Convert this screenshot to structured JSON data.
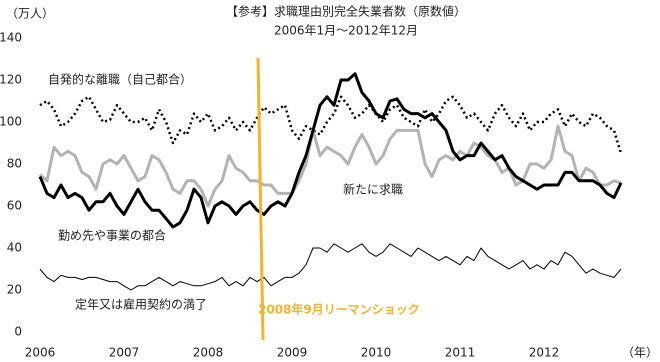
{
  "chart_data": {
    "type": "line",
    "title": "【参考】求職理由別完全失業者数（原数値）",
    "subtitle": "2006年1月～2012年12月",
    "y_label": "（万人）",
    "x_label": "（年）",
    "annotation": "2008年9月リーマンショック",
    "annotation_color": "#f5b326",
    "categories": [
      "2006",
      null,
      null,
      null,
      null,
      null,
      null,
      null,
      null,
      null,
      null,
      null,
      "2007",
      null,
      null,
      null,
      null,
      null,
      null,
      null,
      null,
      null,
      null,
      null,
      "2008",
      null,
      null,
      null,
      null,
      null,
      null,
      null,
      null,
      null,
      null,
      null,
      "2009",
      null,
      null,
      null,
      null,
      null,
      null,
      null,
      null,
      null,
      null,
      null,
      "2010",
      null,
      null,
      null,
      null,
      null,
      null,
      null,
      null,
      null,
      null,
      null,
      "2011",
      null,
      null,
      null,
      null,
      null,
      null,
      null,
      null,
      null,
      null,
      null,
      "2012",
      null,
      null,
      null,
      null,
      null,
      null,
      null,
      null,
      null,
      null,
      null
    ],
    "ylim": [
      0,
      140
    ],
    "yticks": [
      0,
      20,
      40,
      60,
      80,
      100,
      120,
      140
    ],
    "series": [
      {
        "name": "自発的な離職（自己都合）",
        "color": "#000000",
        "style": "dotted",
        "values": [
          108,
          110,
          106,
          98,
          100,
          104,
          110,
          112,
          106,
          100,
          101,
          108,
          104,
          100,
          100,
          102,
          96,
          106,
          100,
          90,
          96,
          94,
          104,
          100,
          104,
          96,
          98,
          102,
          96,
          100,
          96,
          102,
          107,
          104,
          106,
          108,
          96,
          92,
          98,
          96,
          94,
          100,
          104,
          112,
          108,
          102,
          104,
          108,
          104,
          100,
          106,
          108,
          102,
          100,
          98,
          106,
          100,
          104,
          110,
          112,
          108,
          102,
          104,
          100,
          96,
          104,
          108,
          102,
          98,
          104,
          96,
          100,
          100,
          104,
          106,
          98,
          104,
          100,
          98,
          104,
          102,
          98,
          96,
          85
        ]
      },
      {
        "name": "新たに求職",
        "color": "#b3b3b3",
        "style": "thick",
        "values": [
          75,
          72,
          88,
          84,
          86,
          84,
          76,
          74,
          68,
          80,
          82,
          80,
          84,
          78,
          72,
          74,
          84,
          82,
          76,
          68,
          66,
          72,
          72,
          68,
          60,
          68,
          72,
          84,
          78,
          76,
          72,
          72,
          70,
          70,
          66,
          66,
          66,
          72,
          80,
          96,
          84,
          88,
          86,
          84,
          80,
          88,
          94,
          88,
          80,
          84,
          92,
          96,
          96,
          96,
          96,
          80,
          74,
          82,
          84,
          82,
          86,
          84,
          90,
          88,
          84,
          82,
          76,
          78,
          70,
          72,
          80,
          80,
          78,
          82,
          98,
          86,
          84,
          72,
          78,
          76,
          70,
          70,
          72,
          71
        ]
      },
      {
        "name": "勤め先や事業の都合",
        "color": "#000000",
        "style": "thick",
        "values": [
          74,
          66,
          64,
          70,
          64,
          66,
          64,
          58,
          62,
          62,
          66,
          60,
          56,
          62,
          68,
          62,
          58,
          58,
          54,
          50,
          52,
          58,
          68,
          64,
          52,
          60,
          62,
          60,
          56,
          60,
          62,
          58,
          56,
          60,
          62,
          60,
          66,
          76,
          84,
          96,
          108,
          112,
          108,
          120,
          120,
          123,
          114,
          110,
          104,
          102,
          110,
          111,
          106,
          104,
          104,
          102,
          104,
          100,
          96,
          86,
          82,
          84,
          84,
          90,
          86,
          82,
          84,
          78,
          74,
          72,
          70,
          68,
          70,
          70,
          70,
          76,
          76,
          72,
          72,
          72,
          70,
          66,
          64,
          71
        ]
      },
      {
        "name": "定年又は雇用契約の満了",
        "color": "#000000",
        "style": "thin",
        "values": [
          30,
          26,
          24,
          27,
          26,
          26,
          25,
          26,
          26,
          25,
          24,
          24,
          22,
          20,
          22,
          22,
          24,
          26,
          24,
          22,
          24,
          23,
          22,
          22,
          23,
          24,
          26,
          22,
          24,
          22,
          26,
          24,
          26,
          22,
          24,
          26,
          26,
          28,
          32,
          40,
          40,
          38,
          42,
          40,
          38,
          40,
          42,
          38,
          36,
          38,
          42,
          40,
          38,
          36,
          40,
          38,
          36,
          34,
          36,
          34,
          32,
          36,
          34,
          40,
          36,
          34,
          32,
          30,
          32,
          34,
          30,
          32,
          30,
          34,
          32,
          38,
          36,
          32,
          28,
          30,
          28,
          27,
          26,
          30
        ]
      }
    ]
  }
}
